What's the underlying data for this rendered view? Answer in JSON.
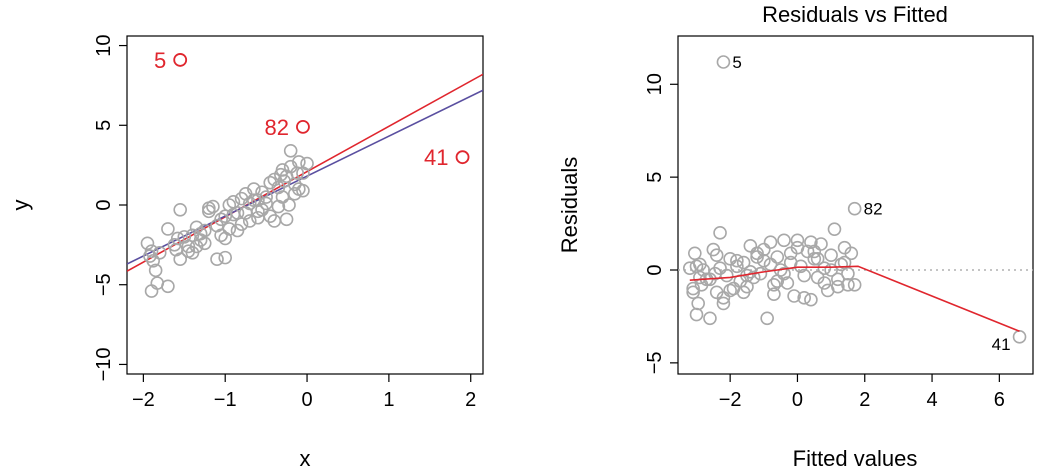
{
  "colors": {
    "points": "#a8a8a8",
    "outlier": "#e0262e",
    "fit_all": "#e0262e",
    "fit_clean": "#5a4fa0",
    "smoother": "#e0262e",
    "zero_line": "#b0b0b0"
  },
  "chart_data": [
    {
      "type": "scatter",
      "title": "",
      "xlabel": "x",
      "ylabel": "y",
      "xlim": [
        -2.2,
        2.15
      ],
      "ylim": [
        -10.6,
        10.6
      ],
      "x_ticks": [
        -2,
        -1,
        0,
        1,
        2
      ],
      "y_ticks": [
        -10,
        -5,
        0,
        5,
        10
      ],
      "x_tick_labels": [
        "−2",
        "−1",
        "0",
        "1",
        "2"
      ],
      "y_tick_labels": [
        "−10",
        "−5",
        "0",
        "5",
        "10"
      ],
      "grid": false,
      "points": {
        "x": [
          -1.95,
          -1.9,
          -1.88,
          -1.85,
          -1.83,
          -1.9,
          -1.92,
          -1.8,
          -1.7,
          -1.6,
          -1.55,
          -1.62,
          -1.5,
          -1.45,
          -1.4,
          -1.35,
          -1.3,
          -1.25,
          -1.2,
          -1.15,
          -1.1,
          -1.05,
          -1.0,
          -0.95,
          -0.9,
          -0.85,
          -0.8,
          -0.75,
          -0.7,
          -0.65,
          -0.6,
          -0.55,
          -0.5,
          -0.45,
          -0.4,
          -0.35,
          -0.3,
          -0.25,
          -0.2,
          -0.15,
          -0.1,
          -0.05,
          0.0,
          -1.4,
          -1.1,
          -0.95,
          -0.7,
          -0.55,
          -0.45,
          -0.3,
          -0.22,
          -0.1,
          -0.05,
          -1.7,
          -1.3,
          -1.0,
          -0.8,
          -0.6,
          -0.35,
          -0.2,
          -0.12,
          -1.55,
          -1.2,
          -0.9,
          -0.65,
          -0.4,
          -0.28,
          -0.15,
          -1.45,
          -1.05,
          -0.75,
          -0.5,
          -0.25,
          -1.58,
          -1.25,
          -0.85,
          -0.6,
          -0.32,
          -1.35,
          -1.0
        ],
        "y": [
          -2.4,
          -2.9,
          -3.5,
          -4.1,
          -4.9,
          -5.4,
          -3.2,
          -3.0,
          -5.1,
          -2.8,
          -0.3,
          -2.5,
          -2.0,
          -2.6,
          -1.9,
          -1.4,
          -2.2,
          -1.6,
          -0.4,
          -0.1,
          -1.3,
          -0.9,
          -0.7,
          0.0,
          0.2,
          -0.5,
          0.4,
          0.7,
          0.1,
          1.0,
          0.3,
          0.8,
          0.5,
          1.4,
          1.6,
          1.1,
          2.2,
          1.8,
          2.4,
          1.3,
          2.7,
          2.0,
          2.6,
          -3.0,
          -3.4,
          -1.5,
          -1.0,
          -0.3,
          -0.7,
          0.5,
          0.0,
          1.0,
          0.9,
          -1.5,
          -1.8,
          -2.1,
          -1.2,
          -0.8,
          -0.1,
          3.4,
          2.0,
          -3.4,
          -0.2,
          -0.6,
          0.3,
          -1.0,
          1.5,
          0.7,
          -2.9,
          -1.9,
          -0.5,
          0.1,
          -0.9,
          -2.1,
          -2.4,
          -1.6,
          -0.4,
          1.9,
          -2.6,
          -3.3
        ]
      },
      "outliers": [
        {
          "label": "5",
          "x": -1.55,
          "y": 9.1
        },
        {
          "label": "82",
          "x": -0.05,
          "y": 4.9
        },
        {
          "label": "41",
          "x": 1.9,
          "y": 3.0
        }
      ],
      "fit_lines": [
        {
          "x": [
            -2.2,
            2.15
          ],
          "y": [
            -4.15,
            8.2
          ]
        },
        {
          "x": [
            -2.2,
            2.15
          ],
          "y": [
            -3.7,
            7.2
          ]
        }
      ]
    },
    {
      "type": "scatter",
      "title": "Residuals vs Fitted",
      "xlabel": "Fitted values",
      "ylabel": "Residuals",
      "xlim": [
        -3.55,
        7.0
      ],
      "ylim": [
        -5.6,
        12.6
      ],
      "x_ticks": [
        -2,
        0,
        2,
        4,
        6
      ],
      "y_ticks": [
        -5,
        0,
        5,
        10
      ],
      "x_tick_labels": [
        "−2",
        "0",
        "2",
        "4",
        "6"
      ],
      "y_tick_labels": [
        "−5",
        "0",
        "5",
        "10"
      ],
      "grid": false,
      "points": {
        "x": [
          -3.2,
          -3.1,
          -3.05,
          -3.0,
          -2.95,
          -2.9,
          -2.85,
          -2.8,
          -2.7,
          -2.6,
          -2.5,
          -2.45,
          -2.4,
          -2.3,
          -2.2,
          -2.1,
          -2.0,
          -1.9,
          -1.8,
          -1.7,
          -1.6,
          -1.5,
          -1.4,
          -1.3,
          -1.2,
          -1.1,
          -1.0,
          -0.9,
          -0.8,
          -0.7,
          -0.6,
          -0.5,
          -0.4,
          -0.3,
          -0.2,
          -0.1,
          0.0,
          0.1,
          0.2,
          0.3,
          0.4,
          0.5,
          0.6,
          0.7,
          0.8,
          0.9,
          1.0,
          1.1,
          1.2,
          1.3,
          1.4,
          1.5,
          1.6,
          1.7,
          -3.0,
          -2.6,
          -2.2,
          -1.8,
          -1.4,
          -1.0,
          -0.6,
          -0.2,
          0.2,
          0.6,
          1.0,
          1.4,
          -2.4,
          -1.6,
          -0.8,
          0.0,
          0.8,
          -2.9,
          -2.0,
          -1.2,
          -0.4,
          0.4,
          1.2,
          -3.1,
          -2.3,
          -1.5,
          -0.7,
          0.5,
          1.5
        ],
        "y": [
          0.1,
          -1.0,
          0.9,
          -2.4,
          -1.8,
          0.3,
          -0.8,
          0.0,
          -0.5,
          -2.6,
          1.1,
          -0.2,
          -1.2,
          2.0,
          -1.5,
          -0.3,
          0.6,
          -1.0,
          0.2,
          -0.6,
          0.4,
          -0.9,
          1.3,
          -0.4,
          0.9,
          -0.2,
          0.5,
          -2.6,
          1.5,
          -1.3,
          0.7,
          0.0,
          1.6,
          -0.7,
          0.4,
          -1.4,
          1.6,
          0.2,
          -0.3,
          1.0,
          -1.6,
          0.6,
          -0.4,
          1.4,
          0.1,
          -1.1,
          0.8,
          2.2,
          -0.9,
          0.3,
          1.2,
          -0.2,
          0.9,
          -0.8,
          0.2,
          -0.5,
          -1.8,
          0.5,
          -0.1,
          1.1,
          -0.6,
          0.9,
          -1.5,
          0.6,
          0.0,
          0.4,
          0.8,
          -1.2,
          0.3,
          1.2,
          -0.7,
          -0.4,
          -1.1,
          0.7,
          -0.2,
          1.5,
          -0.5,
          -1.2,
          0.1,
          -0.3,
          -0.8,
          1.0,
          -0.8
        ],
        "labeled": [
          {
            "label": "5",
            "x": -2.2,
            "y": 11.2
          },
          {
            "label": "82",
            "x": 1.7,
            "y": 3.3
          },
          {
            "label": "41",
            "x": 6.6,
            "y": -3.6
          }
        ]
      },
      "smoother": {
        "x": [
          -3.2,
          -2.0,
          -1.0,
          0.0,
          1.0,
          1.8,
          6.6
        ],
        "y": [
          -0.55,
          -0.4,
          -0.1,
          0.15,
          0.15,
          0.2,
          -3.3
        ]
      },
      "zero_line": 0
    }
  ]
}
